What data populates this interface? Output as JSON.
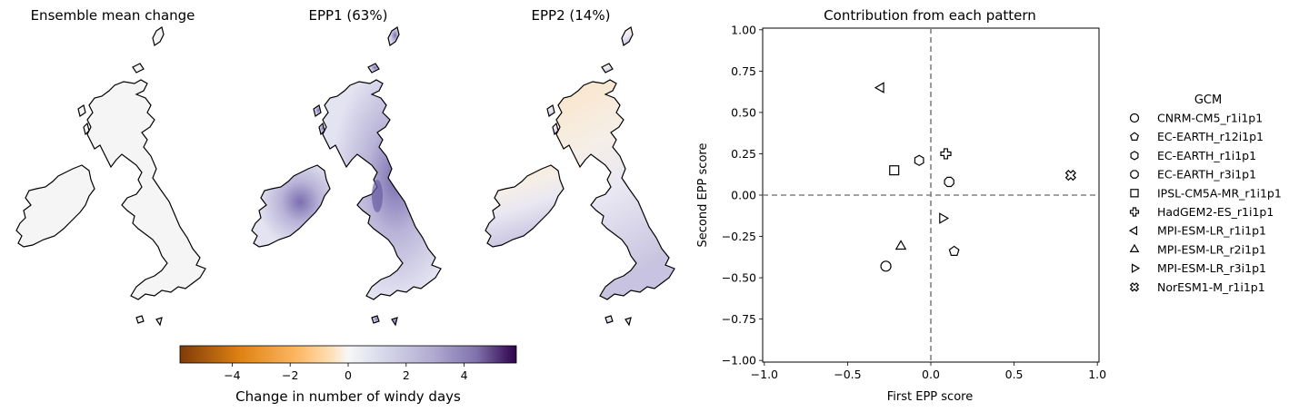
{
  "map_panels": [
    {
      "title": "Ensemble mean change",
      "shading": "neutral"
    },
    {
      "title": "EPP1 (63%)",
      "shading": "purple"
    },
    {
      "title": "EPP2 (14%)",
      "shading": "mixed"
    }
  ],
  "colorbar": {
    "label": "Change in number of windy days",
    "ticks": [
      "−4",
      "−2",
      "0",
      "2",
      "4"
    ],
    "tick_values": [
      -4,
      -2,
      0,
      2,
      4
    ],
    "range": [
      -5.8,
      5.8
    ],
    "colormap": "PuOr",
    "colors": [
      "#7f3b08",
      "#e08214",
      "#fee0b6",
      "#f7f7f7",
      "#d8daeb",
      "#8073ac",
      "#2d004b"
    ]
  },
  "chart_data": {
    "type": "scatter",
    "title": "Contribution from each pattern",
    "xlabel": "First EPP score",
    "ylabel": "Second EPP score",
    "xlim": [
      -1.0,
      1.0
    ],
    "ylim": [
      -1.0,
      1.0
    ],
    "xticks": [
      -1.0,
      -0.5,
      0.0,
      0.5,
      1.0
    ],
    "xtick_labels": [
      "−1.0",
      "−0.5",
      "0.0",
      "0.5",
      "1.0"
    ],
    "yticks": [
      1.0,
      0.75,
      0.5,
      0.25,
      0.0,
      -0.25,
      -0.5,
      -0.75,
      -1.0
    ],
    "ytick_labels": [
      "1.00",
      "0.75",
      "0.50",
      "0.25",
      "0.00",
      "−0.25",
      "−0.50",
      "−0.75",
      "−1.00"
    ],
    "reference_lines": {
      "x": 0.0,
      "y": 0.0,
      "style": "dashed",
      "color": "#808080"
    },
    "grid": false,
    "legend_title": "GCM",
    "legend_position": "right",
    "series": [
      {
        "name": "CNRM-CM5_r1i1p1",
        "marker": "circle",
        "x": -0.27,
        "y": -0.43
      },
      {
        "name": "EC-EARTH_r12i1p1",
        "marker": "pentagon",
        "x": 0.14,
        "y": -0.34
      },
      {
        "name": "EC-EARTH_r1i1p1",
        "marker": "hexagon",
        "x": -0.07,
        "y": 0.21
      },
      {
        "name": "EC-EARTH_r3i1p1",
        "marker": "octagon",
        "x": 0.11,
        "y": 0.08
      },
      {
        "name": "IPSL-CM5A-MR_r1i1p1",
        "marker": "square",
        "x": -0.22,
        "y": 0.15
      },
      {
        "name": "HadGEM2-ES_r1i1p1",
        "marker": "plus",
        "x": 0.09,
        "y": 0.25
      },
      {
        "name": "MPI-ESM-LR_r1i1p1",
        "marker": "triangle-left",
        "x": -0.3,
        "y": 0.65
      },
      {
        "name": "MPI-ESM-LR_r2i1p1",
        "marker": "triangle-up",
        "x": -0.18,
        "y": -0.31
      },
      {
        "name": "MPI-ESM-LR_r3i1p1",
        "marker": "triangle-right",
        "x": 0.07,
        "y": -0.14
      },
      {
        "name": "NorESM1-M_r1i1p1",
        "marker": "x-filled",
        "x": 0.84,
        "y": 0.12
      }
    ]
  }
}
